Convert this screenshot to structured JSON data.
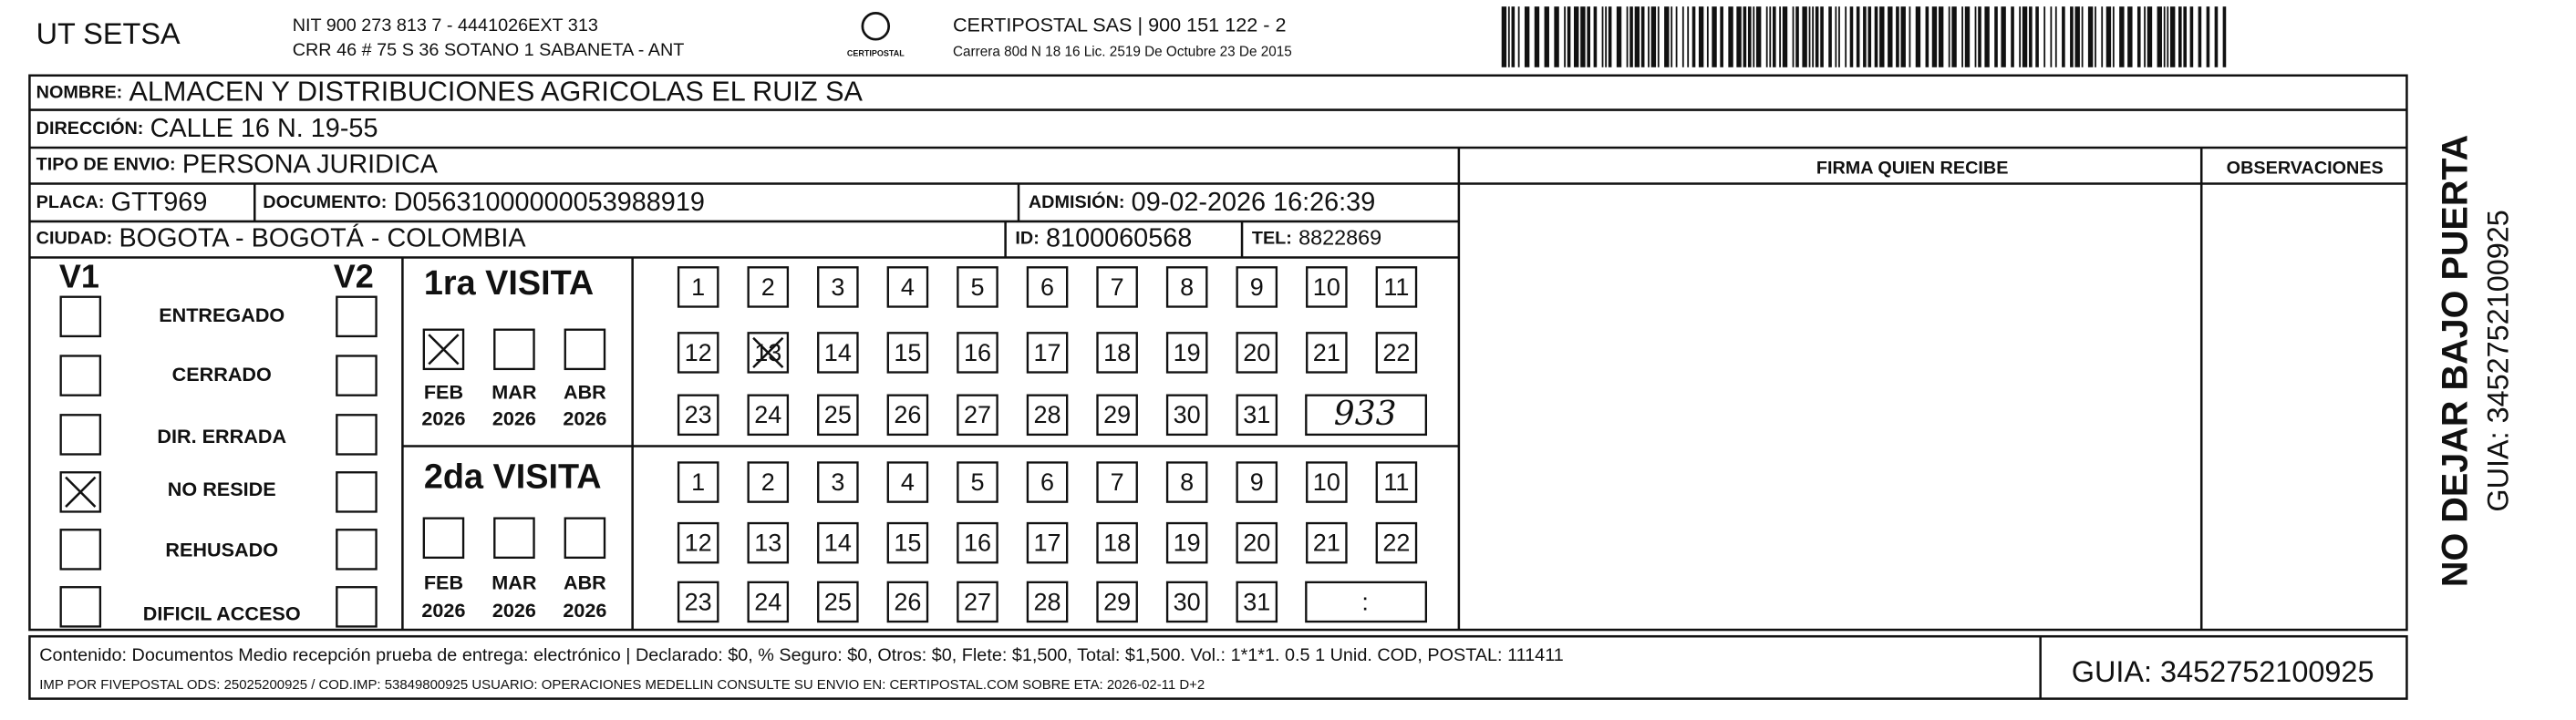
{
  "header": {
    "company": "UT SETSA",
    "nit": "NIT 900 273 813 7 - 4441026EXT 313",
    "address": "CRR 46 # 75 S 36 SOTANO 1 SABANETA - ANT",
    "logo_text": "CERTIPOSTAL",
    "carrier": "CERTIPOSTAL SAS | 900 151 122 - 2",
    "carrier_address": "Carrera 80d N 18 16 Lic. 2519 De Octubre 23 De 2015"
  },
  "recipient": {
    "name": {
      "label": "NOMBRE:",
      "value": "ALMACEN Y DISTRIBUCIONES AGRICOLAS EL RUIZ SA"
    },
    "address": {
      "label": "DIRECCIÓN:",
      "value": "CALLE 16 N. 19-55"
    },
    "shipment_type": {
      "label": "TIPO DE ENVIO:",
      "value": "PERSONA JURIDICA"
    },
    "plate": {
      "label": "PLACA:",
      "value": "GTT969"
    },
    "document": {
      "label": "DOCUMENTO:",
      "value": "D05631000000053988919"
    },
    "admission": {
      "label": "ADMISIÓN:",
      "value": "09-02-2026 16:26:39"
    },
    "city": {
      "label": "CIUDAD:",
      "value": "BOGOTA - BOGOTÁ - COLOMBIA"
    },
    "id": {
      "label": "ID:",
      "value": "8100060568"
    },
    "phone": {
      "label": "TEL:",
      "value": "8822869"
    }
  },
  "signature_label": "FIRMA QUIEN RECIBE",
  "observations_label": "OBSERVACIONES",
  "side": {
    "warning": "NO DEJAR BAJO PUERTA",
    "guide": "GUIA: 3452752100925"
  },
  "status": {
    "v1": "V1",
    "v2": "V2",
    "options": [
      "ENTREGADO",
      "CERRADO",
      "DIR. ERRADA",
      "NO RESIDE",
      "REHUSADO",
      "DIFICIL ACCESO"
    ],
    "v1_checked": [
      false,
      false,
      false,
      true,
      false,
      false
    ]
  },
  "visits": [
    {
      "title": "1ra VISITA",
      "months": [
        {
          "month": "FEB",
          "year": "2026"
        },
        {
          "month": "MAR",
          "year": "2026"
        },
        {
          "month": "ABR",
          "year": "2026"
        }
      ],
      "month_checked": [
        true,
        false,
        false
      ],
      "days": [
        1,
        2,
        3,
        4,
        5,
        6,
        7,
        8,
        9,
        10,
        11,
        12,
        13,
        14,
        15,
        16,
        17,
        18,
        19,
        20,
        21,
        22,
        23,
        24,
        25,
        26,
        27,
        28,
        29,
        30,
        31
      ],
      "crossed_day": 13,
      "extra": "933"
    },
    {
      "title": "2da VISITA",
      "months": [
        {
          "month": "FEB",
          "year": "2026"
        },
        {
          "month": "MAR",
          "year": "2026"
        },
        {
          "month": "ABR",
          "year": "2026"
        }
      ],
      "month_checked": [
        false,
        false,
        false
      ],
      "days": [
        1,
        2,
        3,
        4,
        5,
        6,
        7,
        8,
        9,
        10,
        11,
        12,
        13,
        14,
        15,
        16,
        17,
        18,
        19,
        20,
        21,
        22,
        23,
        24,
        25,
        26,
        27,
        28,
        29,
        30,
        31
      ],
      "extra": ":"
    }
  ],
  "footer": {
    "content": "Contenido: Documentos Medio recepción prueba de entrega: electrónico | Declarado: $0, % Seguro: $0, Otros: $0, Flete: $1,500, Total: $1,500. Vol.: 1*1*1. 0.5 1 Unid. COD, POSTAL: 111411",
    "print_info": "IMP POR FIVEPOSTAL ODS: 25025200925 / COD.IMP: 53849800925 USUARIO: OPERACIONES MEDELLIN CONSULTE SU ENVIO EN: CERTIPOSTAL.COM SOBRE ETA: 2026-02-11 D+2",
    "guide": "GUIA: 3452752100925"
  }
}
